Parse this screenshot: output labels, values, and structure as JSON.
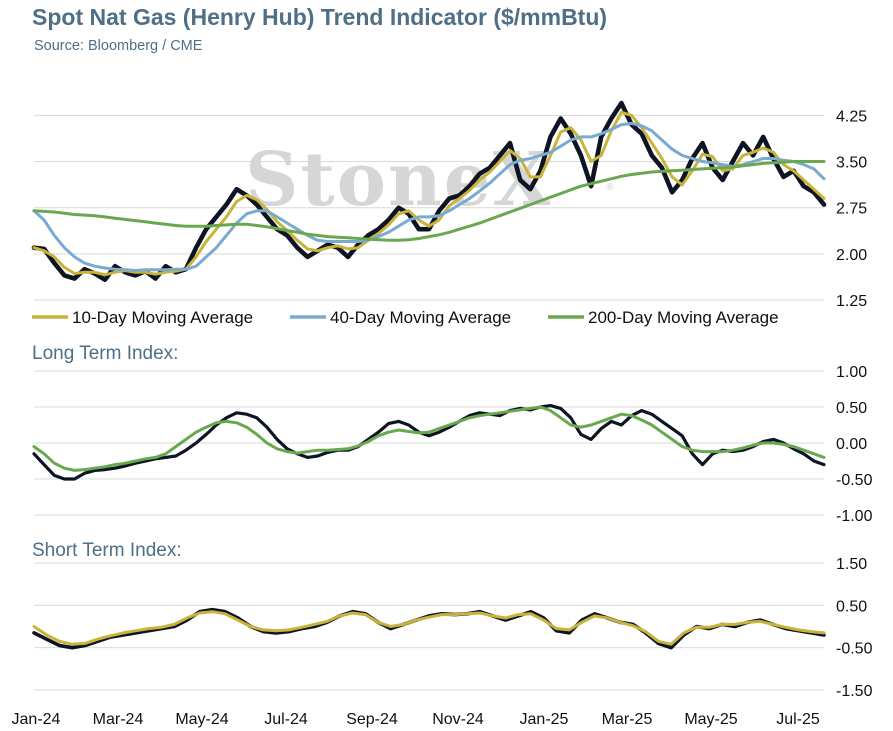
{
  "header": {
    "title": "Spot Nat Gas (Henry Hub) Trend Indicator ($/mmBtu)",
    "source": "Source: Bloomberg / CME"
  },
  "watermark": {
    "text": "StoneX",
    "mark": "®"
  },
  "colors": {
    "price": "#0d1524",
    "ma10": "#c8b43a",
    "ma40": "#7aaad0",
    "ma200": "#6aa84f",
    "title": "#4e6f86",
    "grid": "#d9d9d9"
  },
  "chart_data": [
    {
      "type": "line",
      "panel": "price",
      "title": "",
      "ylim": [
        1.25,
        4.5
      ],
      "yticks": [
        "4.25",
        "3.50",
        "2.75",
        "2.00",
        "1.25"
      ],
      "ytick_values": [
        4.25,
        3.5,
        2.75,
        2.0,
        1.25
      ],
      "legend": [
        "10-Day Moving Average",
        "40-Day Moving Average",
        "200-Day Moving Average"
      ],
      "legend_position": "bottom",
      "grid": true,
      "series": [
        {
          "key": "price",
          "values": [
            2.1,
            2.08,
            1.85,
            1.65,
            1.6,
            1.75,
            1.68,
            1.58,
            1.8,
            1.7,
            1.65,
            1.72,
            1.6,
            1.8,
            1.7,
            1.75,
            2.1,
            2.4,
            2.6,
            2.8,
            3.05,
            2.95,
            2.8,
            2.6,
            2.4,
            2.3,
            2.1,
            1.95,
            2.05,
            2.15,
            2.1,
            1.95,
            2.15,
            2.3,
            2.4,
            2.55,
            2.75,
            2.65,
            2.4,
            2.4,
            2.7,
            2.9,
            2.95,
            3.1,
            3.3,
            3.4,
            3.6,
            3.8,
            3.2,
            3.05,
            3.35,
            3.9,
            4.2,
            3.95,
            3.6,
            3.1,
            3.9,
            4.2,
            4.45,
            4.1,
            3.95,
            3.6,
            3.4,
            3.0,
            3.2,
            3.55,
            3.8,
            3.4,
            3.2,
            3.5,
            3.8,
            3.6,
            3.9,
            3.55,
            3.25,
            3.35,
            3.1,
            3.0,
            2.8
          ]
        },
        {
          "key": "ma10",
          "values": [
            2.1,
            2.05,
            1.95,
            1.78,
            1.68,
            1.7,
            1.7,
            1.66,
            1.7,
            1.73,
            1.7,
            1.7,
            1.67,
            1.7,
            1.72,
            1.75,
            1.95,
            2.2,
            2.4,
            2.6,
            2.85,
            2.95,
            2.88,
            2.72,
            2.52,
            2.38,
            2.22,
            2.08,
            2.05,
            2.1,
            2.13,
            2.08,
            2.1,
            2.22,
            2.33,
            2.47,
            2.65,
            2.7,
            2.55,
            2.45,
            2.55,
            2.78,
            2.9,
            3.03,
            3.2,
            3.33,
            3.5,
            3.68,
            3.55,
            3.25,
            3.25,
            3.6,
            3.98,
            4.05,
            3.85,
            3.5,
            3.6,
            4.0,
            4.3,
            4.25,
            4.05,
            3.8,
            3.55,
            3.25,
            3.12,
            3.35,
            3.62,
            3.58,
            3.35,
            3.38,
            3.6,
            3.65,
            3.72,
            3.65,
            3.45,
            3.35,
            3.2,
            3.05,
            2.9
          ]
        },
        {
          "key": "ma40",
          "values": [
            2.7,
            2.55,
            2.3,
            2.1,
            1.95,
            1.85,
            1.8,
            1.77,
            1.75,
            1.74,
            1.73,
            1.74,
            1.74,
            1.74,
            1.75,
            1.75,
            1.8,
            1.95,
            2.1,
            2.3,
            2.5,
            2.65,
            2.7,
            2.7,
            2.6,
            2.5,
            2.4,
            2.3,
            2.22,
            2.2,
            2.2,
            2.2,
            2.2,
            2.22,
            2.28,
            2.35,
            2.45,
            2.55,
            2.6,
            2.6,
            2.62,
            2.7,
            2.8,
            2.9,
            3.02,
            3.15,
            3.3,
            3.45,
            3.52,
            3.55,
            3.6,
            3.65,
            3.75,
            3.85,
            3.9,
            3.9,
            3.95,
            4.02,
            4.1,
            4.12,
            4.08,
            4.0,
            3.85,
            3.7,
            3.6,
            3.55,
            3.5,
            3.48,
            3.45,
            3.42,
            3.45,
            3.5,
            3.55,
            3.55,
            3.52,
            3.5,
            3.45,
            3.38,
            3.22
          ]
        },
        {
          "key": "ma200",
          "values": [
            2.7,
            2.69,
            2.68,
            2.66,
            2.64,
            2.63,
            2.62,
            2.6,
            2.58,
            2.56,
            2.54,
            2.52,
            2.5,
            2.48,
            2.46,
            2.45,
            2.45,
            2.45,
            2.46,
            2.47,
            2.48,
            2.48,
            2.46,
            2.44,
            2.41,
            2.38,
            2.35,
            2.32,
            2.3,
            2.28,
            2.27,
            2.26,
            2.25,
            2.24,
            2.23,
            2.22,
            2.22,
            2.23,
            2.25,
            2.28,
            2.31,
            2.35,
            2.4,
            2.45,
            2.5,
            2.56,
            2.62,
            2.68,
            2.74,
            2.8,
            2.86,
            2.92,
            2.98,
            3.04,
            3.1,
            3.14,
            3.18,
            3.22,
            3.26,
            3.29,
            3.31,
            3.33,
            3.34,
            3.35,
            3.36,
            3.37,
            3.38,
            3.39,
            3.4,
            3.41,
            3.43,
            3.45,
            3.47,
            3.48,
            3.49,
            3.5,
            3.5,
            3.5,
            3.5
          ]
        }
      ]
    },
    {
      "type": "line",
      "panel": "long",
      "title": "Long Term Index:",
      "ylim": [
        -1.0,
        1.0
      ],
      "yticks": [
        "1.00",
        "0.50",
        "0.00",
        "-0.50",
        "-1.00"
      ],
      "ytick_values": [
        1.0,
        0.5,
        0.0,
        -0.5,
        -1.0
      ],
      "grid": true,
      "series": [
        {
          "key": "index",
          "values": [
            -0.15,
            -0.3,
            -0.45,
            -0.5,
            -0.5,
            -0.42,
            -0.38,
            -0.37,
            -0.35,
            -0.32,
            -0.28,
            -0.25,
            -0.22,
            -0.2,
            -0.18,
            -0.1,
            0.0,
            0.12,
            0.25,
            0.35,
            0.42,
            0.4,
            0.35,
            0.22,
            0.05,
            -0.08,
            -0.15,
            -0.2,
            -0.18,
            -0.13,
            -0.1,
            -0.1,
            -0.05,
            0.05,
            0.15,
            0.27,
            0.3,
            0.25,
            0.15,
            0.1,
            0.15,
            0.22,
            0.3,
            0.38,
            0.42,
            0.4,
            0.38,
            0.45,
            0.48,
            0.46,
            0.5,
            0.52,
            0.48,
            0.35,
            0.12,
            0.05,
            0.2,
            0.3,
            0.25,
            0.38,
            0.45,
            0.4,
            0.3,
            0.2,
            0.1,
            -0.15,
            -0.3,
            -0.15,
            -0.1,
            -0.12,
            -0.1,
            -0.05,
            0.02,
            0.05,
            0.0,
            -0.08,
            -0.15,
            -0.25,
            -0.3
          ]
        },
        {
          "key": "signal",
          "values": [
            -0.05,
            -0.15,
            -0.28,
            -0.35,
            -0.38,
            -0.37,
            -0.35,
            -0.33,
            -0.3,
            -0.28,
            -0.25,
            -0.22,
            -0.2,
            -0.15,
            -0.05,
            0.05,
            0.15,
            0.22,
            0.28,
            0.3,
            0.28,
            0.22,
            0.12,
            0.0,
            -0.08,
            -0.12,
            -0.14,
            -0.12,
            -0.1,
            -0.1,
            -0.09,
            -0.08,
            -0.04,
            0.02,
            0.1,
            0.15,
            0.18,
            0.16,
            0.14,
            0.15,
            0.2,
            0.25,
            0.3,
            0.35,
            0.38,
            0.4,
            0.42,
            0.44,
            0.46,
            0.48,
            0.5,
            0.45,
            0.35,
            0.25,
            0.22,
            0.25,
            0.3,
            0.35,
            0.4,
            0.38,
            0.32,
            0.25,
            0.15,
            0.05,
            -0.05,
            -0.1,
            -0.12,
            -0.12,
            -0.12,
            -0.1,
            -0.07,
            -0.03,
            0.0,
            0.0,
            -0.02,
            -0.05,
            -0.1,
            -0.15,
            -0.2
          ]
        }
      ]
    },
    {
      "type": "line",
      "panel": "short",
      "title": "Short Term Index:",
      "ylim": [
        -1.5,
        1.5
      ],
      "yticks": [
        "1.50",
        "0.50",
        "-0.50",
        "-1.50"
      ],
      "ytick_values": [
        1.5,
        0.5,
        -0.5,
        -1.5
      ],
      "grid": true,
      "series": [
        {
          "key": "index",
          "values": [
            -0.15,
            -0.3,
            -0.45,
            -0.5,
            -0.45,
            -0.35,
            -0.25,
            -0.2,
            -0.15,
            -0.1,
            -0.05,
            0.0,
            0.15,
            0.35,
            0.4,
            0.35,
            0.2,
            0.0,
            -0.12,
            -0.15,
            -0.12,
            -0.05,
            0.0,
            0.1,
            0.25,
            0.35,
            0.3,
            0.1,
            -0.05,
            0.05,
            0.15,
            0.25,
            0.3,
            0.28,
            0.3,
            0.35,
            0.25,
            0.15,
            0.25,
            0.35,
            0.2,
            -0.1,
            -0.15,
            0.15,
            0.3,
            0.2,
            0.1,
            0.05,
            -0.15,
            -0.4,
            -0.5,
            -0.2,
            0.0,
            -0.05,
            0.05,
            0.0,
            0.1,
            0.15,
            0.05,
            -0.05,
            -0.1,
            -0.15,
            -0.2
          ]
        },
        {
          "key": "signal",
          "values": [
            0.0,
            -0.2,
            -0.35,
            -0.42,
            -0.4,
            -0.3,
            -0.22,
            -0.15,
            -0.1,
            -0.05,
            -0.02,
            0.05,
            0.2,
            0.32,
            0.35,
            0.3,
            0.15,
            0.0,
            -0.08,
            -0.1,
            -0.08,
            -0.02,
            0.05,
            0.12,
            0.25,
            0.32,
            0.28,
            0.1,
            0.0,
            0.05,
            0.15,
            0.22,
            0.28,
            0.28,
            0.3,
            0.32,
            0.25,
            0.2,
            0.28,
            0.3,
            0.15,
            -0.05,
            -0.08,
            0.1,
            0.25,
            0.2,
            0.1,
            0.02,
            -0.12,
            -0.35,
            -0.42,
            -0.15,
            -0.02,
            -0.02,
            0.05,
            0.05,
            0.1,
            0.12,
            0.05,
            -0.02,
            -0.08,
            -0.12,
            -0.15
          ]
        }
      ]
    }
  ],
  "x_axis": {
    "labels": [
      "Jan-24",
      "Mar-24",
      "May-24",
      "Jul-24",
      "Sep-24",
      "Nov-24",
      "Jan-25",
      "Mar-25",
      "May-25",
      "Jul-25"
    ]
  }
}
